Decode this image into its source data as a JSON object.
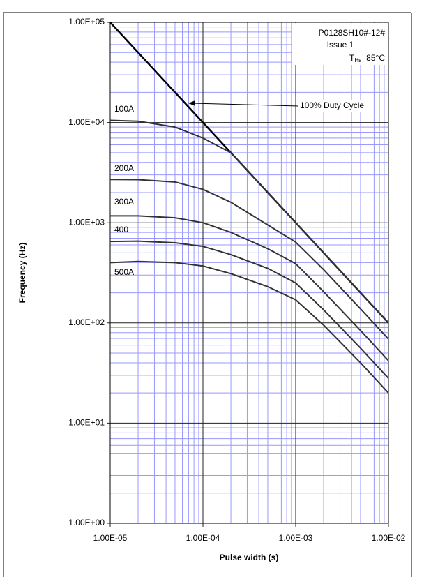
{
  "chart_data": {
    "type": "line",
    "log_x": true,
    "log_y": true,
    "grid": true,
    "xlabel": "Pulse width (s)",
    "ylabel": "Frequency (Hz)",
    "x": [
      1e-05,
      2e-05,
      5e-05,
      0.0001,
      0.0002,
      0.0005,
      0.001,
      0.002,
      0.005,
      0.01
    ],
    "series": [
      {
        "name": "100% Duty Cycle",
        "color": "#000000",
        "values": [
          100000,
          50000,
          20000,
          10000,
          5000,
          2000,
          1000,
          500,
          200,
          100
        ]
      },
      {
        "name": "100A",
        "color": "#333333",
        "values": [
          10500,
          10300,
          9000,
          7000,
          5000,
          2000,
          1000,
          500,
          200,
          100
        ]
      },
      {
        "name": "200A",
        "color": "#333333",
        "values": [
          2700,
          2690,
          2550,
          2150,
          1600,
          950,
          640,
          340,
          138,
          69
        ]
      },
      {
        "name": "300A",
        "color": "#333333",
        "values": [
          1170,
          1170,
          1120,
          1000,
          800,
          550,
          390,
          205,
          84,
          42
        ]
      },
      {
        "name": "400",
        "color": "#333333",
        "values": [
          650,
          655,
          630,
          580,
          480,
          350,
          250,
          135,
          56,
          28
        ]
      },
      {
        "name": "500A",
        "color": "#333333",
        "values": [
          400,
          410,
          400,
          370,
          310,
          230,
          170,
          95,
          40,
          20
        ]
      }
    ],
    "xlim": [
      1e-05,
      0.01
    ],
    "ylim": [
      1,
      100000
    ],
    "xticks": [
      {
        "value": 1e-05,
        "label": "1.00E-05"
      },
      {
        "value": 0.0001,
        "label": "1.00E-04"
      },
      {
        "value": 0.001,
        "label": "1.00E-03"
      },
      {
        "value": 0.01,
        "label": "1.00E-02"
      }
    ],
    "yticks": [
      {
        "value": 1,
        "label": "1.00E+00"
      },
      {
        "value": 10,
        "label": "1.00E+01"
      },
      {
        "value": 100,
        "label": "1.00E+02"
      },
      {
        "value": 1000,
        "label": "1.00E+03"
      },
      {
        "value": 10000,
        "label": "1.00E+04"
      },
      {
        "value": 100000,
        "label": "1.00E+05"
      }
    ],
    "xminorticks": [
      2e-05,
      3e-05,
      4e-05,
      5e-05,
      6e-05,
      7e-05,
      8e-05,
      9e-05,
      0.0002,
      0.0003,
      0.0004,
      0.0005,
      0.0006,
      0.0007,
      0.0008,
      0.0009,
      0.002,
      0.003,
      0.004,
      0.005,
      0.006,
      0.007,
      0.008,
      0.009
    ],
    "yminorticks": [
      2,
      3,
      4,
      5,
      6,
      7,
      8,
      9,
      20,
      30,
      40,
      50,
      60,
      70,
      80,
      90,
      200,
      300,
      400,
      500,
      600,
      700,
      800,
      900,
      2000,
      3000,
      4000,
      5000,
      6000,
      7000,
      8000,
      9000,
      20000,
      30000,
      40000,
      50000,
      60000,
      70000,
      80000,
      90000
    ],
    "annotations": {
      "part": "P0128SH10#-12#",
      "issue": "Issue 1",
      "temp_t": "T",
      "temp_sub": "Hs",
      "temp_value": "=85°C"
    }
  }
}
